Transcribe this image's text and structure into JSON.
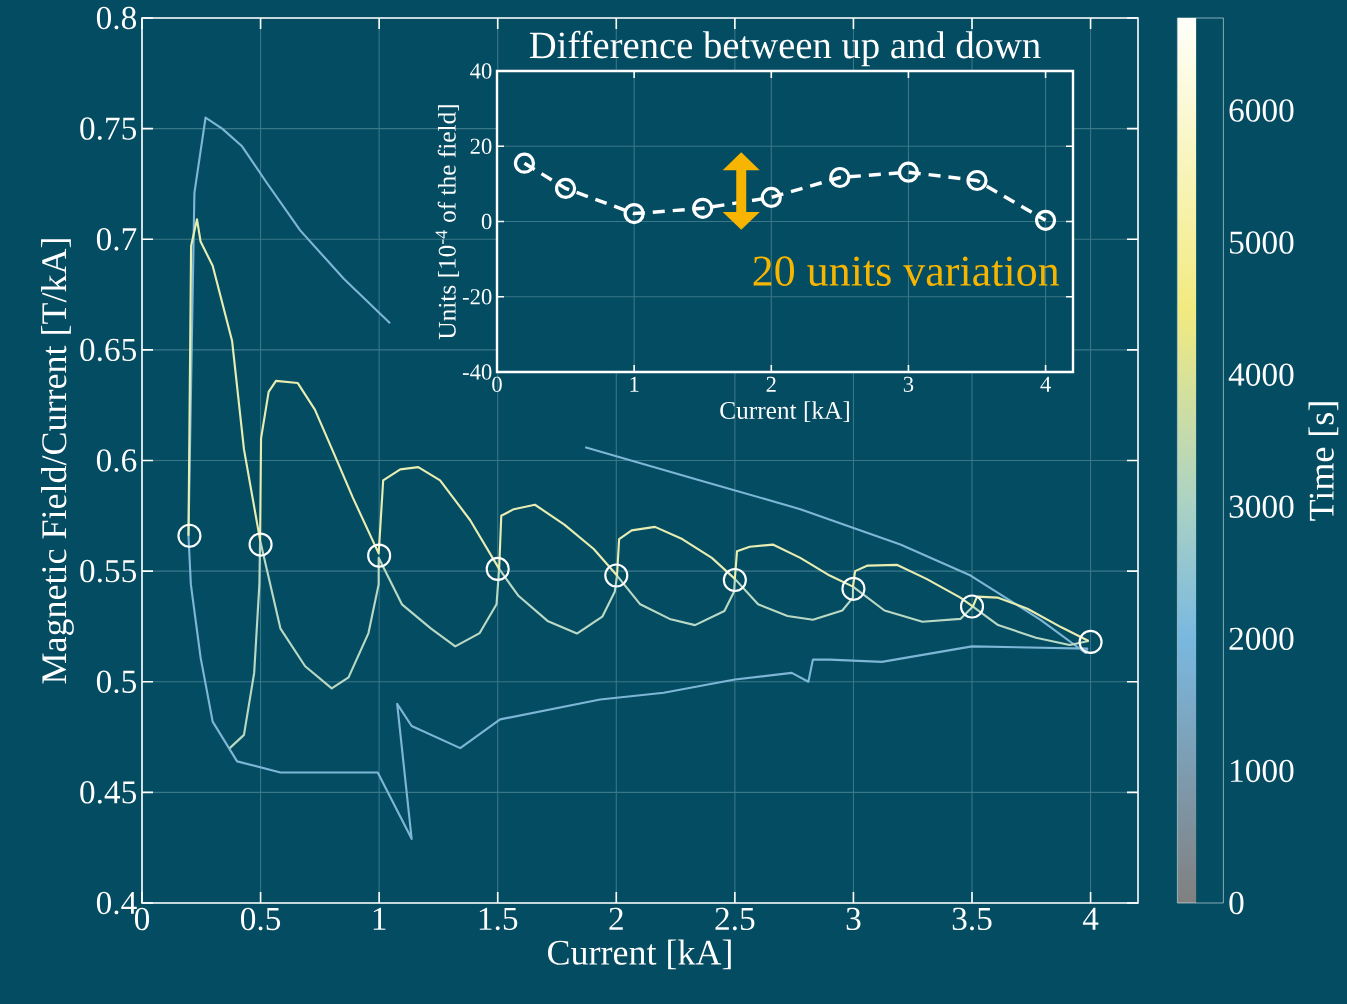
{
  "chart_data": [
    {
      "type": "line",
      "xlabel": "Current [kA]",
      "ylabel": "Magnetic Field/Current [T/kA]",
      "clabel": "Time [s]",
      "clim": [
        0,
        6700
      ],
      "cticks": [
        0,
        1000,
        2000,
        3000,
        4000,
        5000,
        6000
      ],
      "xlim": [
        0,
        4.2
      ],
      "ylim": [
        0.4,
        0.8
      ],
      "xticks": [
        0,
        0.5,
        1,
        1.5,
        2,
        2.5,
        3,
        3.5,
        4
      ],
      "yticks": [
        0.4,
        0.45,
        0.5,
        0.55,
        0.6,
        0.65,
        0.7,
        0.75,
        0.8
      ],
      "grid": true,
      "series": [
        {
          "type": "line",
          "color": "#7db6d6",
          "x": [
            0.196,
            0.221,
            0.268,
            0.338,
            0.422,
            0.523,
            0.667,
            0.852,
            1.046,
            1.4,
            1.869,
            2.354,
            2.776,
            3.198,
            3.494,
            3.789,
            3.979,
            3.986,
            3.5,
            3.12,
            2.9,
            2.829,
            2.81,
            2.74,
            2.5,
            2.2,
            1.932,
            1.51,
            1.342,
            1.137,
            1.076,
            1.137,
            0.994,
            0.81,
            0.584,
            0.401,
            0.298,
            0.247,
            0.206,
            0.196
          ],
          "values": [
            0.566,
            0.721,
            0.755,
            0.75,
            0.742,
            0.726,
            0.704,
            0.682,
            0.662,
            null,
            0.606,
            0.591,
            0.578,
            0.562,
            0.548,
            0.528,
            0.513,
            0.515,
            0.516,
            0.509,
            0.51,
            0.51,
            0.5,
            0.504,
            0.501,
            0.495,
            0.492,
            0.483,
            0.47,
            0.48,
            0.49,
            0.429,
            0.459,
            0.459,
            0.459,
            0.464,
            0.482,
            0.511,
            0.544,
            0.566
          ]
        },
        {
          "type": "line",
          "color": "#b9d9c4",
          "x": [
            0.37,
            0.43,
            0.473,
            0.495,
            0.498,
            0.584,
            0.688,
            0.8,
            0.871,
            0.955,
            0.998,
            0.998,
            1.096,
            1.219,
            1.321,
            1.424,
            1.495,
            1.506,
            1.586,
            1.71,
            1.834,
            1.941,
            1.994,
            2.003,
            2.101,
            2.225,
            2.332,
            2.456,
            2.497,
            2.5,
            2.598,
            2.722,
            2.829,
            2.953,
            2.998,
            2.998,
            3.131,
            3.291,
            3.451,
            3.504,
            3.61,
            3.77,
            3.912,
            3.992
          ],
          "values": [
            0.47,
            0.476,
            0.504,
            0.544,
            0.564,
            0.524,
            0.507,
            0.497,
            0.502,
            0.522,
            0.544,
            0.556,
            0.535,
            0.524,
            0.516,
            0.522,
            0.535,
            0.551,
            0.539,
            0.5275,
            0.5218,
            0.5294,
            0.5408,
            0.548,
            0.535,
            0.5284,
            0.5256,
            0.532,
            0.5408,
            0.5465,
            0.535,
            0.5297,
            0.528,
            0.5322,
            0.538,
            0.543,
            0.5322,
            0.5271,
            0.5284,
            0.534,
            0.5256,
            0.5199,
            0.5166,
            0.5184
          ]
        },
        {
          "type": "line",
          "color": "#e8edb2",
          "x": [
            0.196,
            0.207,
            0.232,
            0.247,
            0.298,
            0.38,
            0.43,
            0.498,
            0.502,
            0.534,
            0.565,
            0.657,
            0.729,
            0.81,
            0.89,
            0.998,
            1.017,
            1.089,
            1.165,
            1.257,
            1.384,
            1.506,
            1.515,
            1.568,
            1.657,
            1.781,
            1.905,
            2.003,
            2.012,
            2.065,
            2.163,
            2.278,
            2.403,
            2.5,
            2.509,
            2.563,
            2.66,
            2.776,
            2.9,
            2.998,
            3.007,
            3.06,
            3.185,
            3.308,
            3.451,
            3.504,
            3.521,
            3.61,
            3.734,
            3.877,
            3.992
          ],
          "values": [
            0.566,
            0.697,
            0.709,
            0.699,
            0.688,
            0.654,
            0.605,
            0.564,
            0.61,
            0.631,
            0.636,
            0.635,
            0.623,
            0.603,
            0.583,
            0.558,
            0.591,
            0.596,
            0.597,
            0.591,
            0.573,
            0.551,
            0.575,
            0.578,
            0.58,
            0.571,
            0.56,
            0.548,
            0.5645,
            0.5684,
            0.57,
            0.5645,
            0.556,
            0.5465,
            0.559,
            0.561,
            0.562,
            0.556,
            0.548,
            0.543,
            0.55,
            0.5525,
            0.5528,
            0.5465,
            0.538,
            0.534,
            0.5385,
            0.538,
            0.533,
            0.5246,
            0.5184
          ]
        },
        {
          "type": "scatter",
          "color": "#ffffff",
          "marker": "circle",
          "x": [
            0.2,
            0.5,
            1,
            1.5,
            2,
            2.5,
            3,
            3.5,
            4
          ],
          "values": [
            0.566,
            0.562,
            0.557,
            0.551,
            0.548,
            0.546,
            0.542,
            0.534,
            0.518
          ]
        }
      ]
    },
    {
      "type": "line",
      "title": "Difference between up and down",
      "xlabel": "Current [kA]",
      "ylabel": "Units [10$^{-4}$ of the field]",
      "xlim": [
        0,
        4.2
      ],
      "ylim": [
        -40,
        40
      ],
      "xticks": [
        0,
        1,
        2,
        3,
        4
      ],
      "yticks": [
        -40,
        -20,
        0,
        20,
        40
      ],
      "grid": true,
      "x": [
        0.2,
        0.5,
        1,
        1.5,
        2,
        2.5,
        3,
        3.5,
        4
      ],
      "series": [
        {
          "color": "#ffffff",
          "line_style": "dashed",
          "marker": "circle",
          "values": [
            15.5,
            8.8,
            2.1,
            3.5,
            6.4,
            11.7,
            13.1,
            10.9,
            0.3
          ]
        }
      ],
      "annotations": [
        "20 units variation"
      ]
    }
  ]
}
